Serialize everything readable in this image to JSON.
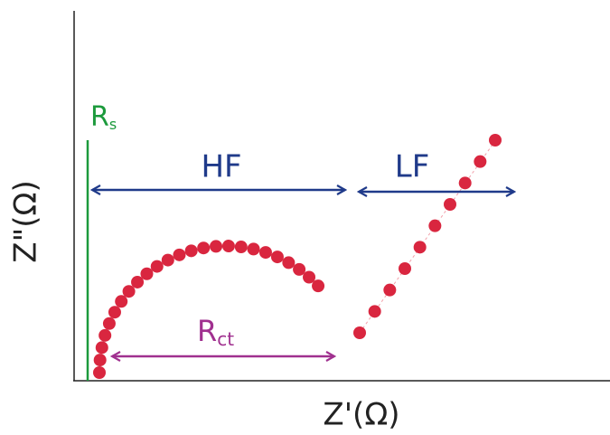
{
  "labels": {
    "rs": {
      "main": "R",
      "sub": "s"
    },
    "hf": "HF",
    "lf": "LF",
    "rct": {
      "main": "R",
      "sub": "ct"
    },
    "y_axis": "Z\"(Ω)",
    "x_axis": "Z'(Ω)"
  }
}
